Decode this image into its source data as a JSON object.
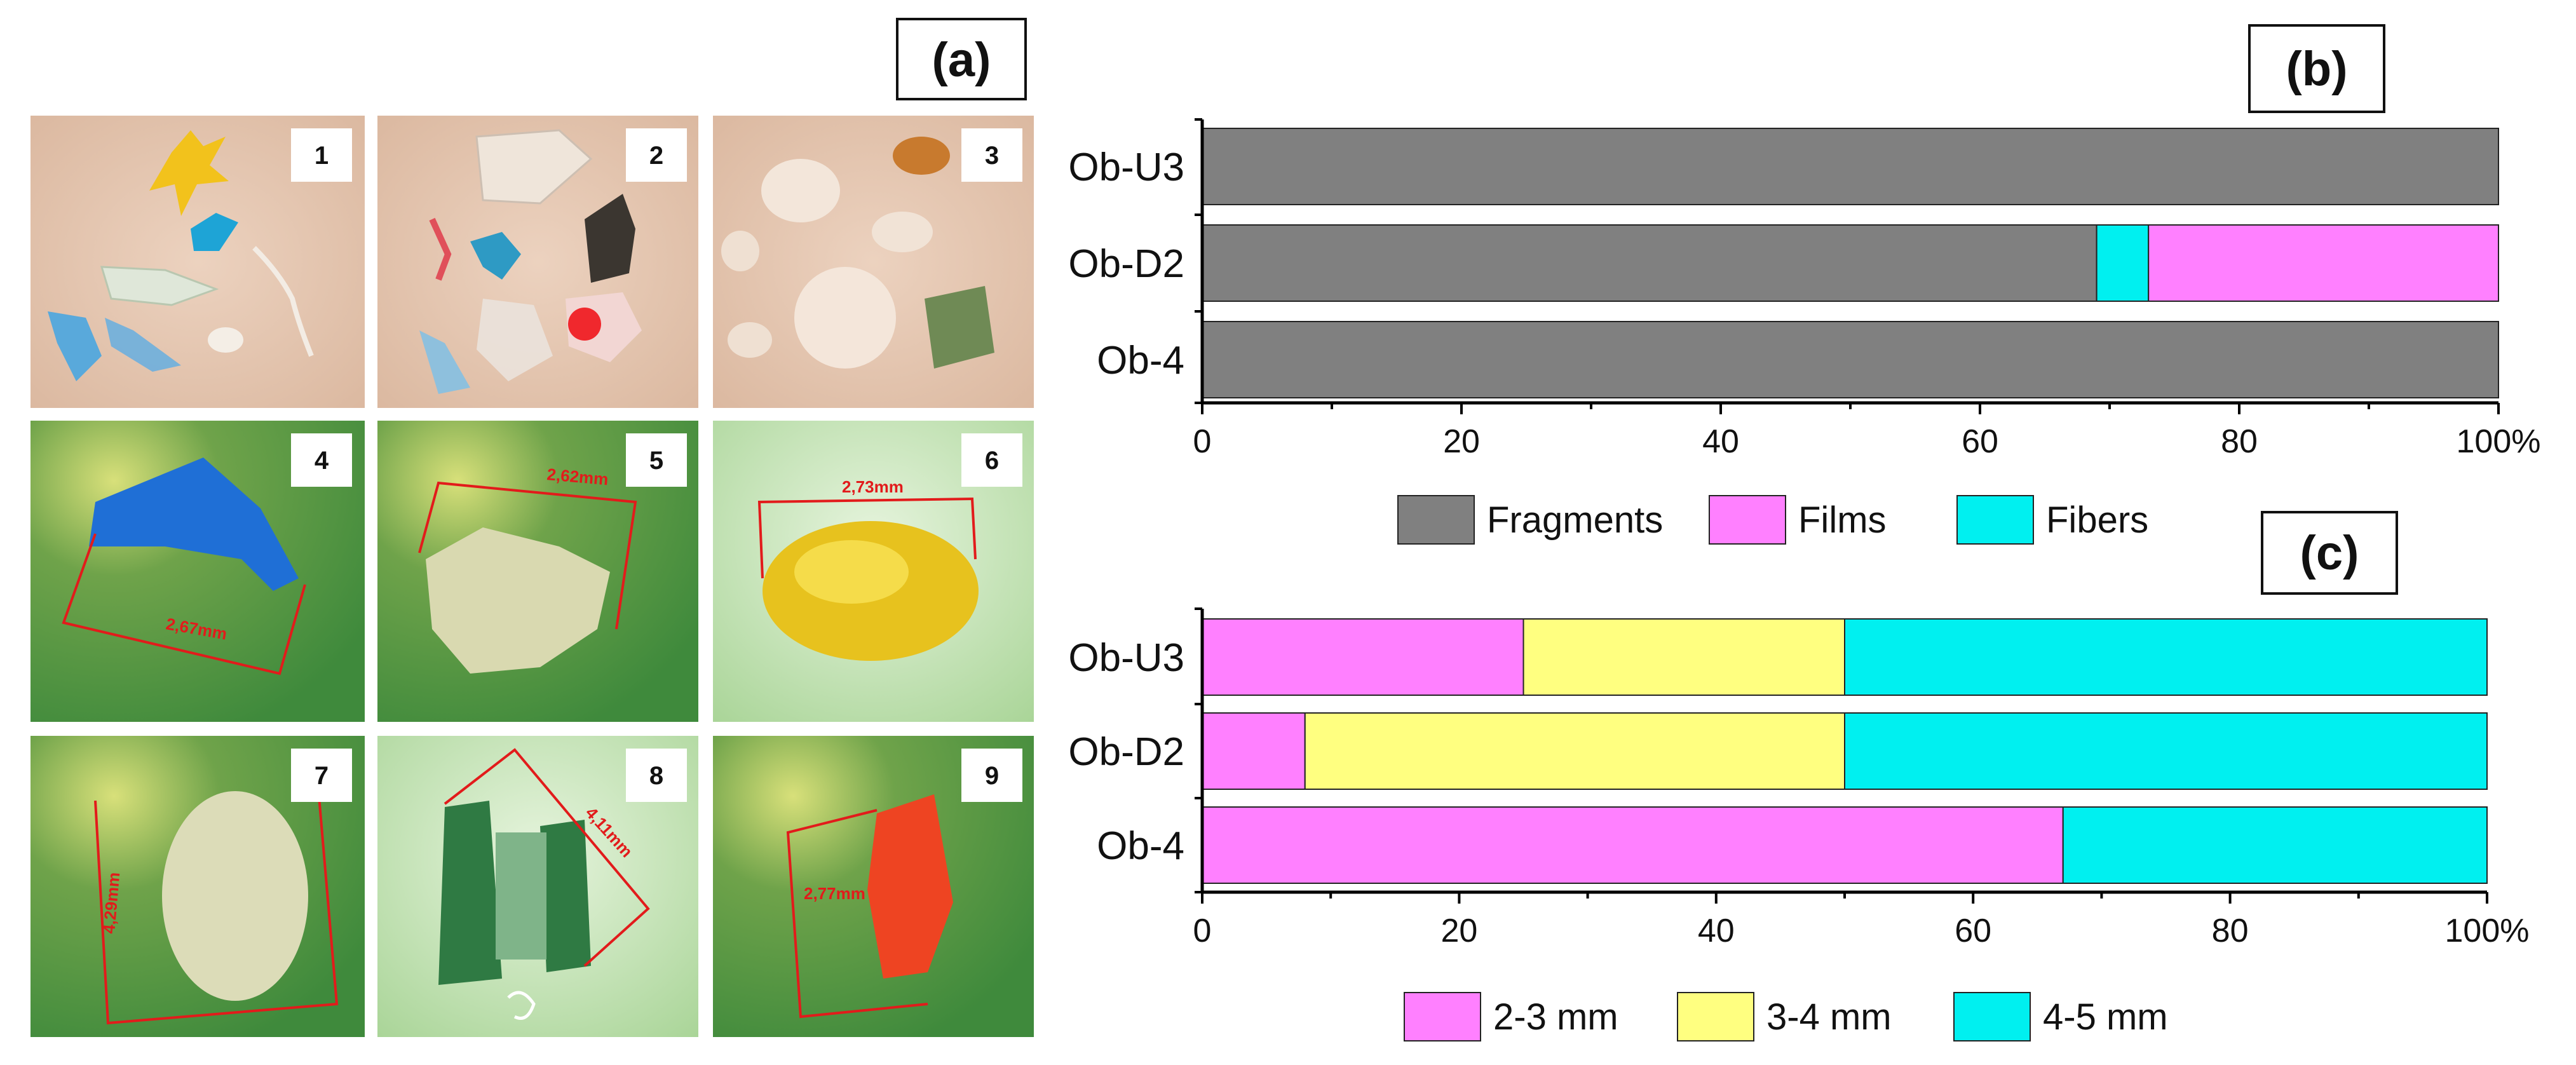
{
  "panel_a": {
    "label": "(a)",
    "tiles": [
      {
        "number": "1",
        "measure": ""
      },
      {
        "number": "2",
        "measure": ""
      },
      {
        "number": "3",
        "measure": ""
      },
      {
        "number": "4",
        "measure": "2,67mm"
      },
      {
        "number": "5",
        "measure": "2,62mm"
      },
      {
        "number": "6",
        "measure": "2,73mm"
      },
      {
        "number": "7",
        "measure": "4,29mm"
      },
      {
        "number": "8",
        "measure": "4,11mm"
      },
      {
        "number": "9",
        "measure": "2,77mm"
      }
    ],
    "colors": {
      "beige": "#e4c3ad",
      "green": "#4f8f3e",
      "light_green": "#b7dba7",
      "measure_red": "#e21b1b"
    }
  },
  "chart_data": [
    {
      "type": "bar",
      "orientation": "horizontal",
      "stacked": true,
      "panel_label": "(b)",
      "categories": [
        "Ob-U3",
        "Ob-D2",
        "Ob-4"
      ],
      "series": [
        {
          "name": "Fragments",
          "color": "#808080",
          "values": [
            100,
            69,
            100
          ]
        },
        {
          "name": "Fibers",
          "color": "#00f0f0",
          "values": [
            0,
            4,
            0
          ]
        },
        {
          "name": "Films",
          "color": "#ff80ff",
          "values": [
            0,
            27,
            0
          ]
        }
      ],
      "legend_order": [
        "Fragments",
        "Films",
        "Fibers"
      ],
      "xlim": [
        0,
        100
      ],
      "xticks": [
        "0",
        "20",
        "40",
        "60",
        "80",
        "100%"
      ],
      "xlabel": "",
      "ylabel": ""
    },
    {
      "type": "bar",
      "orientation": "horizontal",
      "stacked": true,
      "panel_label": "(c)",
      "categories": [
        "Ob-U3",
        "Ob-D2",
        "Ob-4"
      ],
      "series": [
        {
          "name": "2-3 mm",
          "color": "#ff80ff",
          "values": [
            25,
            8,
            67
          ]
        },
        {
          "name": "3-4 mm",
          "color": "#ffff80",
          "values": [
            25,
            42,
            0
          ]
        },
        {
          "name": "4-5 mm",
          "color": "#00f0f0",
          "values": [
            50,
            50,
            33
          ]
        }
      ],
      "legend_order": [
        "2-3 mm",
        "3-4 mm",
        "4-5 mm"
      ],
      "xlim": [
        0,
        100
      ],
      "xticks": [
        "0",
        "20",
        "40",
        "60",
        "80",
        "100%"
      ],
      "xlabel": "",
      "ylabel": ""
    }
  ]
}
